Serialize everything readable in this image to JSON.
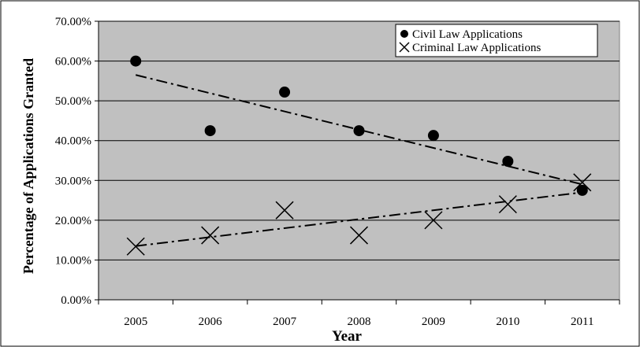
{
  "chart_data": {
    "type": "scatter",
    "xlabel": "Year",
    "ylabel": "Percentage of Applications Granted",
    "x": [
      "2005",
      "2006",
      "2007",
      "2008",
      "2009",
      "2010",
      "2011"
    ],
    "y_ticks": [
      "0.00%",
      "10.00%",
      "20.00%",
      "30.00%",
      "40.00%",
      "50.00%",
      "60.00%",
      "70.00%"
    ],
    "ylim": [
      0,
      70
    ],
    "grid": true,
    "legend_position": "top-right",
    "plot_background": "#c0c0c0",
    "series": [
      {
        "name": "Civil Law Applications",
        "marker": "filled-circle",
        "values": [
          60.0,
          42.5,
          52.2,
          42.5,
          41.3,
          34.8,
          27.5
        ],
        "trendline": {
          "style": "dash-dot",
          "start": 56.5,
          "end": 29.0
        }
      },
      {
        "name": "Criminal Law Applications",
        "marker": "x-cross",
        "values": [
          13.4,
          16.2,
          22.5,
          16.2,
          20.0,
          24.0,
          29.5
        ],
        "trendline": {
          "style": "dash-dot",
          "start": 13.5,
          "end": 27.0
        }
      }
    ]
  }
}
